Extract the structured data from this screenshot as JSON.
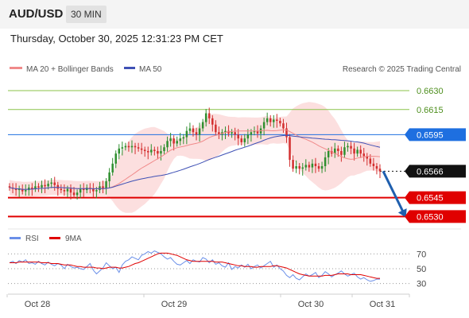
{
  "header": {
    "pair": "AUD/USD",
    "timeframe": "30 MIN",
    "datetime": "Thursday, October 30, 2025 12:31:23 PM CET"
  },
  "legend": {
    "ma20_bollinger": "MA 20 + Bollinger Bands",
    "ma50": "MA 50",
    "copyright": "Research © 2025 Trading Central",
    "rsi": "RSI",
    "ma9": "9MA"
  },
  "colors": {
    "bullish": "#2f8f2f",
    "bearish": "#d32f2f",
    "ma20": "#f08a8a",
    "ma50": "#3f51b5",
    "bollinger_fill": "#fbd4d4",
    "resistance": "#8bc34a",
    "pivot": "#1e6fe0",
    "support": "#e00000",
    "current": "#111111",
    "forecast_arrow": "#1f5fae",
    "rsi": "#6a8fe8",
    "rsi_ma": "#e00000"
  },
  "chart_data": [
    {
      "type": "candlestick",
      "title": "",
      "interval": "30 MIN",
      "x_ticks": [
        "Oct 28",
        "Oct 29",
        "Oct 30",
        "Oct 31"
      ],
      "ylim": [
        0.6522,
        0.6642
      ],
      "grid": false,
      "last_price": 0.6566,
      "levels": [
        {
          "label": "0.6630",
          "value": 0.663,
          "kind": "resistance"
        },
        {
          "label": "0.6615",
          "value": 0.6615,
          "kind": "resistance"
        },
        {
          "label": "0.6595",
          "value": 0.6595,
          "kind": "pivot"
        },
        {
          "label": "0.6566",
          "value": 0.6566,
          "kind": "current"
        },
        {
          "label": "0.6545",
          "value": 0.6545,
          "kind": "support"
        },
        {
          "label": "0.6530",
          "value": 0.653,
          "kind": "support"
        }
      ],
      "forecast": {
        "direction": "down",
        "from": 0.6566,
        "to": 0.653
      },
      "price_closes": [
        0.6553,
        0.6552,
        0.6551,
        0.6552,
        0.655,
        0.6551,
        0.6553,
        0.6552,
        0.6554,
        0.6553,
        0.6555,
        0.6554,
        0.6556,
        0.6557,
        0.6555,
        0.6552,
        0.6551,
        0.655,
        0.6552,
        0.6549,
        0.6547,
        0.6549,
        0.6552,
        0.6551,
        0.6553,
        0.6552,
        0.655,
        0.6551,
        0.6554,
        0.6552,
        0.6558,
        0.6565,
        0.6572,
        0.658,
        0.6584,
        0.6585,
        0.6586,
        0.6585,
        0.6586,
        0.6585,
        0.6584,
        0.6583,
        0.6582,
        0.6581,
        0.6583,
        0.6582,
        0.658,
        0.6582,
        0.6585,
        0.659,
        0.6592,
        0.6588,
        0.659,
        0.6592,
        0.6593,
        0.6598,
        0.66,
        0.6597,
        0.6595,
        0.66,
        0.6605,
        0.6612,
        0.6608,
        0.6603,
        0.6597,
        0.6595,
        0.6597,
        0.6598,
        0.6596,
        0.6597,
        0.6595,
        0.6592,
        0.6589,
        0.6592,
        0.6595,
        0.6597,
        0.6598,
        0.6596,
        0.66,
        0.6605,
        0.6608,
        0.6605,
        0.6607,
        0.6606,
        0.6604,
        0.66,
        0.6593,
        0.6575,
        0.6568,
        0.657,
        0.6568,
        0.6569,
        0.6571,
        0.6569,
        0.6572,
        0.657,
        0.6568,
        0.657,
        0.6577,
        0.6582,
        0.658,
        0.6584,
        0.6582,
        0.6579,
        0.6585,
        0.6586,
        0.6584,
        0.658,
        0.6583,
        0.658,
        0.6578,
        0.6576,
        0.6572,
        0.657,
        0.6568,
        0.6566
      ],
      "rsi": {
        "levels": [
          70,
          50,
          30
        ],
        "ylim": [
          20,
          80
        ],
        "values": [
          58,
          60,
          57,
          61,
          59,
          62,
          57,
          58,
          56,
          60,
          57,
          55,
          59,
          56,
          54,
          57,
          55,
          50,
          56,
          53,
          51,
          52,
          50,
          49,
          53,
          57,
          48,
          43,
          47,
          51,
          58,
          54,
          50,
          52,
          45,
          55,
          60,
          62,
          66,
          64,
          62,
          68,
          70,
          73,
          71,
          74,
          72,
          70,
          66,
          63,
          65,
          60,
          56,
          55,
          58,
          61,
          57,
          62,
          60,
          59,
          65,
          63,
          58,
          62,
          56,
          58,
          54,
          52,
          58,
          49,
          53,
          51,
          55,
          52,
          56,
          50,
          53,
          55,
          51,
          54,
          57,
          60,
          52,
          55,
          50,
          47,
          41,
          38,
          42,
          37,
          35,
          39,
          43,
          40,
          42,
          45,
          38,
          41,
          46,
          43,
          39,
          42,
          44,
          47,
          43,
          40,
          42,
          44,
          39,
          36,
          38,
          35,
          33,
          34,
          36,
          36
        ],
        "ma9": [
          58,
          58,
          58,
          59,
          59,
          59,
          59,
          59,
          59,
          59,
          58,
          58,
          58,
          57,
          57,
          57,
          56,
          55,
          55,
          55,
          54,
          53,
          53,
          52,
          52,
          52,
          52,
          51,
          51,
          50,
          51,
          52,
          52,
          52,
          51,
          51,
          52,
          53,
          55,
          57,
          58,
          60,
          62,
          64,
          66,
          68,
          70,
          71,
          71,
          71,
          70,
          69,
          68,
          66,
          64,
          62,
          61,
          60,
          60,
          60,
          60,
          60,
          60,
          60,
          59,
          59,
          59,
          58,
          57,
          56,
          55,
          54,
          54,
          53,
          53,
          53,
          52,
          52,
          53,
          53,
          53,
          53,
          54,
          54,
          53,
          52,
          51,
          49,
          47,
          45,
          43,
          42,
          41,
          40,
          40,
          40,
          40,
          40,
          41,
          41,
          41,
          42,
          43,
          43,
          43,
          43,
          42,
          42,
          42,
          42,
          41,
          40,
          39,
          38,
          37,
          37
        ]
      }
    }
  ]
}
